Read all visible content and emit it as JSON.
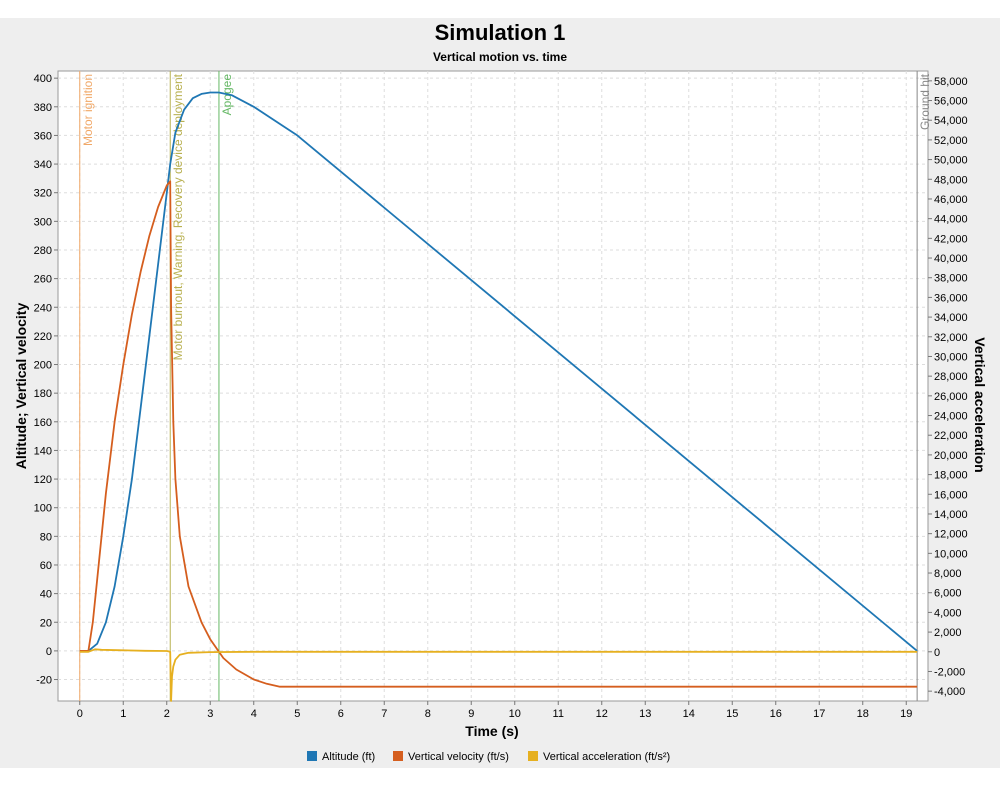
{
  "chart_data": {
    "type": "line",
    "title": "Simulation 1",
    "subtitle": "Vertical motion vs. time",
    "xlabel": "Time (s)",
    "ylabel_left": "Altitude; Vertical velocity",
    "ylabel_right": "Vertical acceleration",
    "xlim": [
      -0.5,
      19.5
    ],
    "ylim_left": [
      -35,
      405
    ],
    "ylim_right": [
      -5000,
      59000
    ],
    "x_ticks": [
      "0",
      "1",
      "2",
      "3",
      "4",
      "5",
      "6",
      "7",
      "8",
      "9",
      "10",
      "11",
      "12",
      "13",
      "14",
      "15",
      "16",
      "17",
      "18",
      "19"
    ],
    "y_left_ticks": [
      "-20",
      "0",
      "20",
      "40",
      "60",
      "80",
      "100",
      "120",
      "140",
      "160",
      "180",
      "200",
      "220",
      "240",
      "260",
      "280",
      "300",
      "320",
      "340",
      "360",
      "380",
      "400"
    ],
    "y_right_ticks": [
      "-4,000",
      "-2,000",
      "0",
      "2,000",
      "4,000",
      "6,000",
      "8,000",
      "10,000",
      "12,000",
      "14,000",
      "16,000",
      "18,000",
      "20,000",
      "22,000",
      "24,000",
      "26,000",
      "28,000",
      "30,000",
      "32,000",
      "34,000",
      "36,000",
      "38,000",
      "40,000",
      "42,000",
      "44,000",
      "46,000",
      "48,000",
      "50,000",
      "52,000",
      "54,000",
      "56,000",
      "58,000"
    ],
    "grid": true,
    "legend_position": "bottom",
    "events": [
      {
        "time": 0.0,
        "label": "Motor ignition",
        "color": "#f0a868"
      },
      {
        "time": 2.08,
        "label": "Motor burnout, Warning, Recovery device deployment",
        "color": "#b8b050"
      },
      {
        "time": 3.2,
        "label": "Apogee",
        "color": "#66b866"
      },
      {
        "time": 19.25,
        "label": "Ground hit",
        "color": "#888888"
      }
    ],
    "series": [
      {
        "name": "Altitude (ft)",
        "axis": "left",
        "color": "#1f77b4",
        "x": [
          0,
          0.2,
          0.4,
          0.6,
          0.8,
          1.0,
          1.2,
          1.4,
          1.6,
          1.8,
          2.0,
          2.08,
          2.2,
          2.4,
          2.6,
          2.8,
          3.0,
          3.2,
          3.5,
          4.0,
          5.0,
          19.25
        ],
        "y": [
          0,
          0,
          5,
          20,
          45,
          80,
          120,
          170,
          220,
          270,
          320,
          340,
          362,
          378,
          386,
          389,
          390,
          390,
          388,
          380,
          360,
          0
        ]
      },
      {
        "name": "Vertical velocity (ft/s)",
        "axis": "left",
        "color": "#d55e1e",
        "x": [
          0,
          0.2,
          0.3,
          0.4,
          0.6,
          0.8,
          1.0,
          1.2,
          1.4,
          1.6,
          1.8,
          2.0,
          2.08,
          2.1,
          2.15,
          2.2,
          2.3,
          2.5,
          2.8,
          3.0,
          3.3,
          3.6,
          4.0,
          4.3,
          4.6,
          5.0,
          19.25
        ],
        "y": [
          0,
          0,
          20,
          50,
          110,
          160,
          200,
          235,
          265,
          290,
          310,
          325,
          328,
          240,
          160,
          120,
          80,
          45,
          20,
          8,
          -5,
          -13,
          -20,
          -23,
          -25,
          -25,
          -25
        ]
      },
      {
        "name": "Vertical acceleration (ft/s²)",
        "axis": "right",
        "color": "#e6b020",
        "x": [
          0,
          0.2,
          0.35,
          0.5,
          1.0,
          1.5,
          2.0,
          2.08,
          2.1,
          2.12,
          2.15,
          2.2,
          2.3,
          2.5,
          3.0,
          4.0,
          19.25
        ],
        "y": [
          0,
          0,
          250,
          200,
          150,
          100,
          80,
          0,
          -5000,
          -2500,
          -1500,
          -800,
          -300,
          -100,
          -30,
          0,
          0
        ]
      }
    ]
  }
}
